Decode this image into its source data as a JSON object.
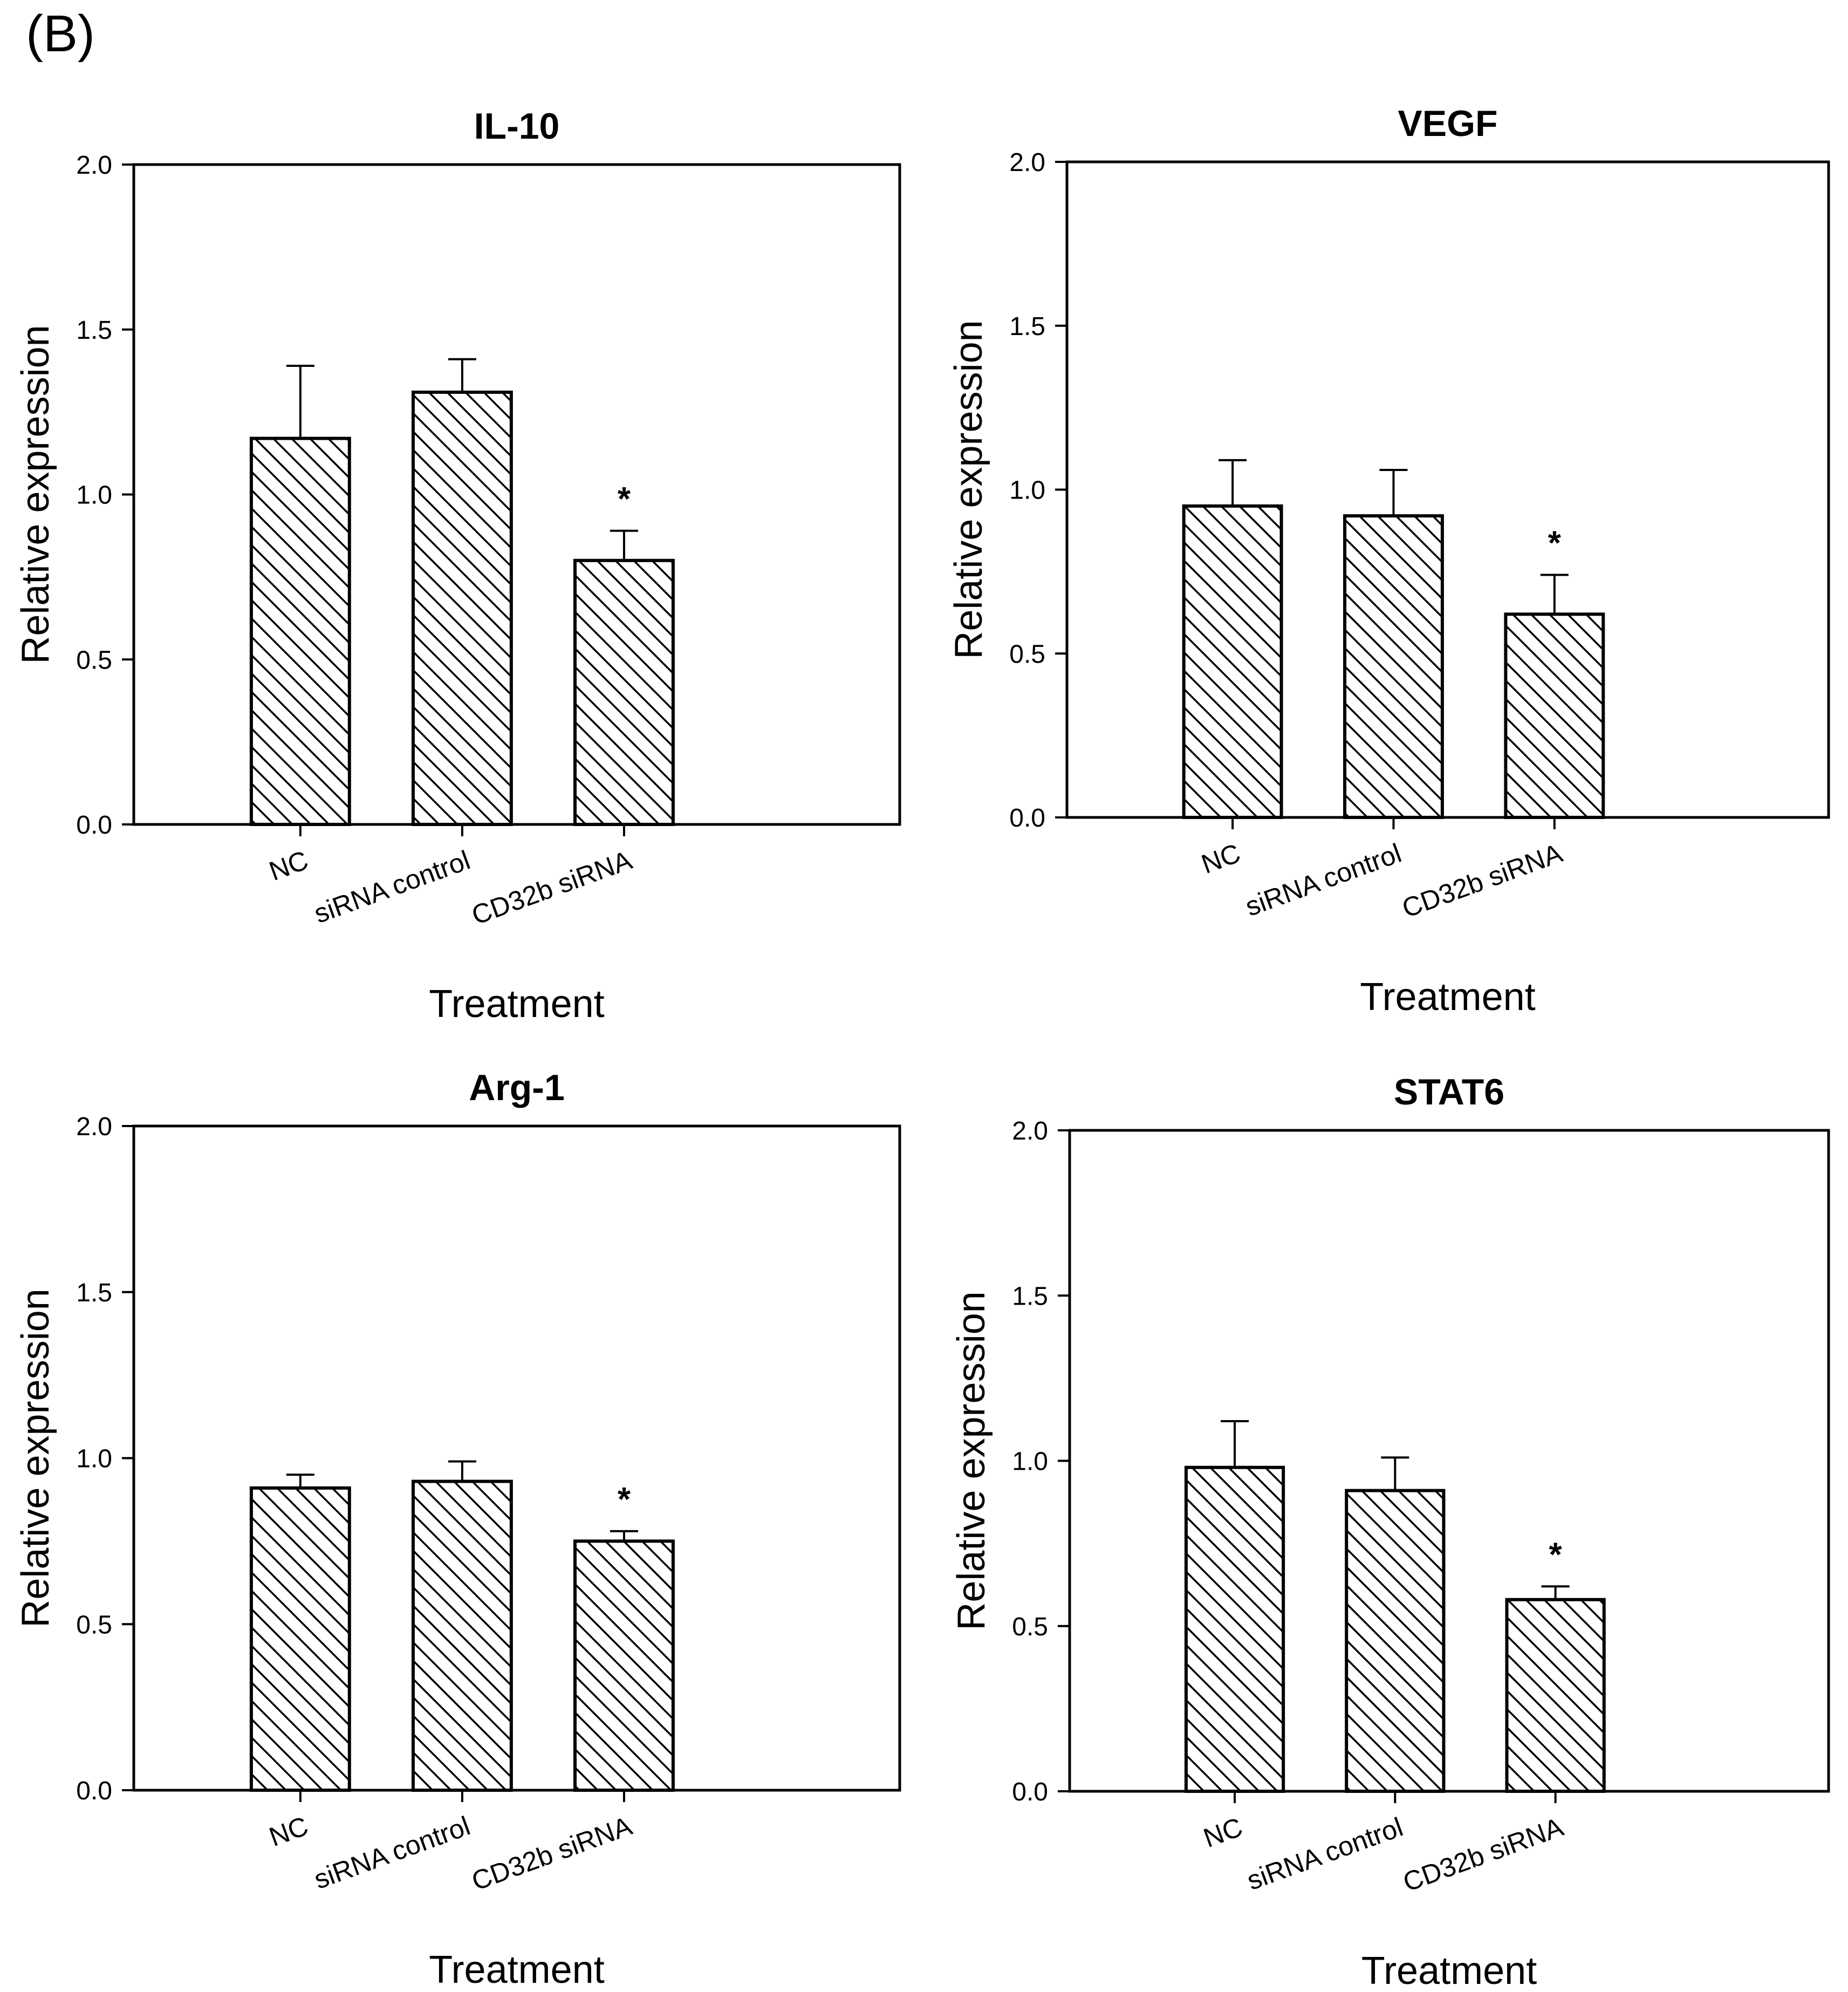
{
  "figure_label": "(B)",
  "pattern": {
    "stroke": "#000000",
    "fill": "#ffffff"
  },
  "chart_data": [
    {
      "type": "bar",
      "title": "IL-10",
      "xlabel": "Treatment",
      "ylabel": "Relative expression",
      "categories": [
        "NC",
        "siRNA control",
        "CD32b siRNA"
      ],
      "values": [
        1.17,
        1.31,
        0.8
      ],
      "errors": [
        0.22,
        0.1,
        0.09
      ],
      "significance": [
        "",
        "",
        "*"
      ],
      "ylim": [
        0,
        2.0
      ],
      "yticks": [
        "0.0",
        "0.5",
        "1.0",
        "1.5",
        "2.0"
      ],
      "grid": false
    },
    {
      "type": "bar",
      "title": "VEGF",
      "xlabel": "Treatment",
      "ylabel": "Relative expression",
      "categories": [
        "NC",
        "siRNA control",
        "CD32b siRNA"
      ],
      "values": [
        0.95,
        0.92,
        0.62
      ],
      "errors": [
        0.14,
        0.14,
        0.12
      ],
      "significance": [
        "",
        "",
        "*"
      ],
      "ylim": [
        0,
        2.0
      ],
      "yticks": [
        "0.0",
        "0.5",
        "1.0",
        "1.5",
        "2.0"
      ],
      "grid": false
    },
    {
      "type": "bar",
      "title": "Arg-1",
      "xlabel": "Treatment",
      "ylabel": "Relative expression",
      "categories": [
        "NC",
        "siRNA control",
        "CD32b siRNA"
      ],
      "tick_texts": [
        "NC",
        "siRNA control",
        "CD32b siRNA"
      ],
      "values": [
        0.91,
        0.93,
        0.75
      ],
      "errors": [
        0.04,
        0.06,
        0.03
      ],
      "significance": [
        "",
        "",
        "*"
      ],
      "ylim": [
        0,
        2.0
      ],
      "yticks": [
        "0.0",
        "0.5",
        "1.0",
        "1.5",
        "2.0"
      ],
      "grid": false
    },
    {
      "type": "bar",
      "title": "STAT6",
      "xlabel": "Treatment",
      "ylabel": "Relative expression",
      "categories": [
        "NC",
        "siRNA control",
        "CD32b siRNA"
      ],
      "values": [
        0.98,
        0.91,
        0.58
      ],
      "errors": [
        0.14,
        0.1,
        0.04
      ],
      "significance": [
        "",
        "",
        "*"
      ],
      "ylim": [
        0,
        2.0
      ],
      "yticks": [
        "0.0",
        "0.5",
        "1.0",
        "1.5",
        "2.0"
      ],
      "grid": false
    }
  ]
}
